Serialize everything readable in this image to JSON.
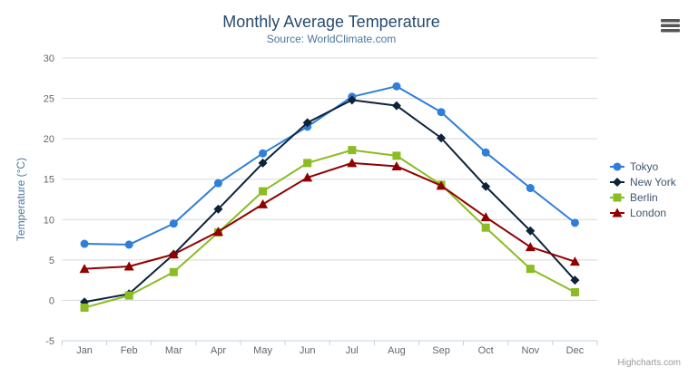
{
  "chart_data": {
    "type": "line",
    "title": "Monthly Average Temperature",
    "subtitle": "Source: WorldClimate.com",
    "xlabel": "",
    "ylabel": "Temperature (°C)",
    "categories": [
      "Jan",
      "Feb",
      "Mar",
      "Apr",
      "May",
      "Jun",
      "Jul",
      "Aug",
      "Sep",
      "Oct",
      "Nov",
      "Dec"
    ],
    "series": [
      {
        "name": "Tokyo",
        "marker": "circle",
        "color": "#2f7ed8",
        "values": [
          7.0,
          6.9,
          9.5,
          14.5,
          18.2,
          21.5,
          25.2,
          26.5,
          23.3,
          18.3,
          13.9,
          9.6
        ]
      },
      {
        "name": "New York",
        "marker": "diamond",
        "color": "#0d233a",
        "values": [
          -0.2,
          0.8,
          5.7,
          11.3,
          17.0,
          22.0,
          24.8,
          24.1,
          20.1,
          14.1,
          8.6,
          2.5
        ]
      },
      {
        "name": "Berlin",
        "marker": "square",
        "color": "#8bbc21",
        "values": [
          -0.9,
          0.6,
          3.5,
          8.4,
          13.5,
          17.0,
          18.6,
          17.9,
          14.3,
          9.0,
          3.9,
          1.0
        ]
      },
      {
        "name": "London",
        "marker": "triangle",
        "color": "#910000",
        "values": [
          3.9,
          4.2,
          5.7,
          8.5,
          11.9,
          15.2,
          17.0,
          16.6,
          14.2,
          10.3,
          6.6,
          4.8
        ]
      }
    ],
    "ylim": [
      -5,
      30
    ],
    "yticks": [
      -5,
      0,
      5,
      10,
      15,
      20,
      25,
      30
    ],
    "grid": true,
    "legend_position": "right",
    "credits": "Highcharts.com",
    "styles": {
      "title_color": "#274b6d",
      "subtitle_color": "#4d759e",
      "grid_color": "#d8d8d8",
      "axis_line_color": "#c0d0e0",
      "axis_label_color": "#666666",
      "axis_title_color": "#4d759e",
      "legend_text_color": "#3e576f",
      "credits_color": "#999999",
      "context_menu_icon_color": "#555555"
    }
  },
  "toolbar": {
    "context_menu_icon": "hamburger-menu"
  }
}
